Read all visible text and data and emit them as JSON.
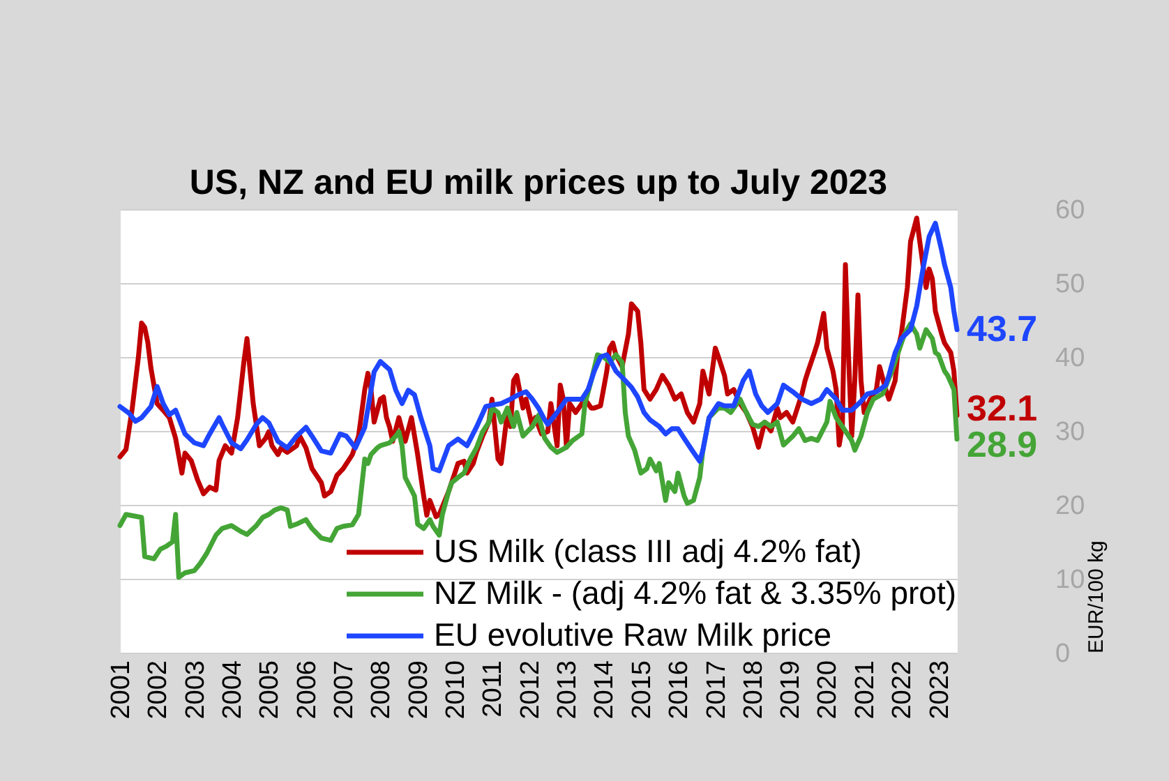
{
  "chart_data": {
    "type": "line",
    "title": "US, NZ and EU milk prices up to July 2023",
    "ylabel": "EUR/100 kg",
    "xlim": [
      "2001-01",
      "2023-07"
    ],
    "xticks": [
      "2001",
      "2002",
      "2003",
      "2004",
      "2005",
      "2006",
      "2007",
      "2008",
      "2009",
      "2010",
      "2011",
      "2012",
      "2013",
      "2014",
      "2015",
      "2016",
      "2017",
      "2018",
      "2019",
      "2020",
      "2021",
      "2022",
      "2023"
    ],
    "ylim": [
      0,
      60
    ],
    "yticks": [
      0,
      10,
      20,
      30,
      40,
      50,
      60
    ],
    "grid": "y",
    "legend": "bottom right",
    "line_style": "solid",
    "series": [
      {
        "name": "US Milk (class III adj 4.2% fat)",
        "color": "#c00000",
        "x": [
          "2001-01",
          "2001-03",
          "2001-05",
          "2001-07",
          "2001-08",
          "2001-09",
          "2001-10",
          "2001-11",
          "2002-01",
          "2002-03",
          "2002-05",
          "2002-07",
          "2002-09",
          "2002-10",
          "2002-12",
          "2003-02",
          "2003-04",
          "2003-06",
          "2003-08",
          "2003-09",
          "2003-11",
          "2004-01",
          "2004-03",
          "2004-05",
          "2004-06",
          "2004-08",
          "2004-10",
          "2004-12",
          "2005-01",
          "2005-02",
          "2005-04",
          "2005-05",
          "2005-07",
          "2005-10",
          "2005-11",
          "2006-01",
          "2006-03",
          "2006-06",
          "2006-07",
          "2006-09",
          "2006-11",
          "2007-01",
          "2007-04",
          "2007-06",
          "2007-08",
          "2007-09",
          "2007-10",
          "2007-11",
          "2008-01",
          "2008-02",
          "2008-03",
          "2008-04",
          "2008-05",
          "2008-07",
          "2008-09",
          "2008-11",
          "2009-01",
          "2009-03",
          "2009-04",
          "2009-05",
          "2009-07",
          "2009-08",
          "2009-11",
          "2010-01",
          "2010-02",
          "2010-04",
          "2010-05",
          "2010-07",
          "2010-08",
          "2010-10",
          "2010-12",
          "2011-01",
          "2011-03",
          "2011-04",
          "2011-06",
          "2011-07",
          "2011-08",
          "2011-09",
          "2011-11",
          "2011-12",
          "2012-02",
          "2012-03",
          "2012-05",
          "2012-07",
          "2012-08",
          "2012-10",
          "2012-11",
          "2012-12",
          "2013-01",
          "2013-02",
          "2013-04",
          "2013-06",
          "2013-07",
          "2013-09",
          "2013-10",
          "2013-12",
          "2014-02",
          "2014-03",
          "2014-04",
          "2014-05",
          "2014-07",
          "2014-09",
          "2014-10",
          "2014-12",
          "2015-01",
          "2015-02",
          "2015-04",
          "2015-06",
          "2015-08",
          "2015-10",
          "2015-12",
          "2016-02",
          "2016-04",
          "2016-06",
          "2016-08",
          "2016-09",
          "2016-11",
          "2017-01",
          "2017-02",
          "2017-04",
          "2017-05",
          "2017-07",
          "2017-09",
          "2017-11",
          "2018-01",
          "2018-03",
          "2018-05",
          "2018-07",
          "2018-09",
          "2018-10",
          "2018-12",
          "2019-02",
          "2019-05",
          "2019-06",
          "2019-07",
          "2019-09",
          "2019-10",
          "2019-12",
          "2020-01",
          "2020-03",
          "2020-04",
          "2020-05",
          "2020-06",
          "2020-07",
          "2020-08",
          "2020-09",
          "2020-10",
          "2020-11",
          "2020-12",
          "2021-01",
          "2021-03",
          "2021-05",
          "2021-06",
          "2021-08",
          "2021-09",
          "2021-11",
          "2021-12",
          "2022-01",
          "2022-03",
          "2022-04",
          "2022-06",
          "2022-07",
          "2022-09",
          "2022-10",
          "2022-11",
          "2022-12",
          "2023-02",
          "2023-03",
          "2023-05",
          "2023-06",
          "2023-07"
        ],
        "values": [
          26.5,
          27.5,
          33.0,
          40.0,
          44.6,
          44.0,
          42.0,
          38.5,
          33.7,
          32.8,
          31.8,
          29.0,
          24.3,
          27.0,
          26.0,
          23.4,
          21.5,
          22.4,
          22.0,
          26.0,
          28.0,
          27.0,
          31.8,
          39.3,
          42.5,
          33.7,
          28.0,
          29.0,
          29.9,
          28.0,
          26.8,
          27.7,
          27.1,
          28.0,
          29.3,
          27.7,
          24.9,
          23.0,
          21.2,
          21.8,
          24.0,
          24.9,
          26.8,
          29.3,
          35.6,
          37.8,
          35.6,
          31.2,
          34.3,
          34.6,
          31.8,
          30.5,
          28.6,
          31.8,
          28.6,
          31.8,
          26.8,
          21.2,
          18.6,
          20.6,
          18.4,
          18.7,
          21.8,
          24.3,
          25.6,
          25.9,
          24.3,
          25.6,
          27.1,
          29.3,
          31.2,
          34.3,
          26.2,
          25.6,
          32.5,
          30.6,
          36.8,
          37.5,
          33.1,
          34.3,
          30.6,
          31.8,
          29.6,
          29.9,
          33.7,
          28.0,
          36.2,
          34.3,
          27.8,
          33.7,
          32.5,
          33.7,
          34.3,
          33.1,
          33.1,
          33.4,
          38.1,
          41.2,
          41.9,
          40.3,
          38.7,
          43.1,
          47.2,
          46.2,
          41.9,
          35.6,
          34.3,
          35.6,
          37.5,
          36.2,
          34.3,
          35.0,
          32.5,
          31.2,
          33.7,
          38.1,
          35.0,
          41.2,
          40.0,
          37.5,
          35.0,
          35.6,
          33.7,
          32.5,
          30.6,
          27.8,
          31.2,
          30.0,
          33.1,
          31.8,
          32.5,
          31.2,
          35.0,
          36.8,
          38.1,
          40.6,
          41.9,
          45.9,
          41.2,
          38.1,
          35.6,
          28.1,
          30.6,
          52.5,
          40.0,
          29.3,
          36.8,
          48.4,
          36.8,
          32.5,
          34.3,
          35.6,
          38.7,
          35.6,
          34.3,
          36.8,
          41.2,
          43.1,
          49.4,
          55.6,
          58.8,
          55.6,
          49.4,
          51.9,
          50.6,
          46.2,
          43.1,
          41.9,
          40.6,
          38.1,
          32.1
        ],
        "value_labels": [
          null,
          null,
          null,
          null,
          null,
          null,
          null,
          null,
          null,
          null,
          null,
          null,
          null,
          null,
          null,
          null,
          null,
          null,
          null,
          null,
          null,
          null,
          null,
          null,
          null,
          null,
          null,
          null,
          null,
          null,
          null,
          null,
          null,
          null,
          null,
          null,
          null,
          null,
          null,
          null,
          null,
          null,
          null,
          null,
          null,
          null,
          null,
          null,
          null,
          null,
          null,
          null,
          null,
          null,
          null,
          null,
          null,
          null,
          null,
          null,
          null,
          null,
          null,
          null,
          null,
          null,
          null,
          null,
          null,
          null,
          null,
          null,
          null,
          null,
          null,
          null,
          null,
          null,
          null,
          null,
          null,
          null,
          null,
          null,
          null,
          null,
          null,
          null,
          null,
          null,
          null,
          null,
          null,
          null,
          null,
          null,
          null,
          null,
          null,
          null,
          null,
          null,
          null,
          null,
          null,
          null,
          null,
          null,
          null,
          null,
          null,
          null,
          null,
          null,
          null,
          null,
          null,
          null,
          null,
          null,
          null,
          null,
          null,
          null,
          null,
          null,
          null,
          null,
          null,
          null,
          null,
          null,
          null,
          null,
          null,
          null,
          null,
          null,
          null,
          null,
          null,
          null,
          null,
          null,
          null,
          null,
          null,
          null,
          null,
          null,
          null,
          null,
          null,
          null,
          null,
          null,
          null,
          null,
          null,
          null,
          null,
          null,
          null,
          null,
          null,
          null,
          null,
          null,
          null,
          null,
          "32.1"
        ]
      },
      {
        "name": "NZ Milk - (adj 4.2% fat & 3.35% prot)",
        "color": "#44a536",
        "x": [
          "2001-01",
          "2001-03",
          "2001-08",
          "2001-09",
          "2001-12",
          "2002-02",
          "2002-04",
          "2002-06",
          "2002-07",
          "2002-08",
          "2002-10",
          "2003-01",
          "2003-03",
          "2003-05",
          "2003-08",
          "2003-10",
          "2004-01",
          "2004-04",
          "2004-06",
          "2004-09",
          "2004-11",
          "2005-01",
          "2005-03",
          "2005-05",
          "2005-07",
          "2005-08",
          "2005-10",
          "2006-01",
          "2006-03",
          "2006-06",
          "2006-09",
          "2006-11",
          "2007-01",
          "2007-04",
          "2007-06",
          "2007-08",
          "2007-09",
          "2007-10",
          "2007-12",
          "2008-01",
          "2008-04",
          "2008-06",
          "2008-07",
          "2008-08",
          "2008-09",
          "2008-12",
          "2009-01",
          "2009-03",
          "2009-05",
          "2009-06",
          "2009-08",
          "2009-09",
          "2009-11",
          "2009-12",
          "2010-02",
          "2010-04",
          "2010-06",
          "2010-08",
          "2010-10",
          "2010-12",
          "2011-01",
          "2011-03",
          "2011-04",
          "2011-06",
          "2011-08",
          "2011-09",
          "2011-11",
          "2012-02",
          "2012-04",
          "2012-06",
          "2012-08",
          "2012-10",
          "2013-01",
          "2013-03",
          "2013-06",
          "2013-07",
          "2013-09",
          "2013-11",
          "2014-01",
          "2014-03",
          "2014-05",
          "2014-07",
          "2014-08",
          "2014-09",
          "2014-11",
          "2015-01",
          "2015-03",
          "2015-04",
          "2015-06",
          "2015-07",
          "2015-09",
          "2015-10",
          "2015-12",
          "2016-01",
          "2016-03",
          "2016-04",
          "2016-06",
          "2016-08",
          "2016-09",
          "2016-11",
          "2017-02",
          "2017-04",
          "2017-06",
          "2017-09",
          "2017-11",
          "2018-01",
          "2018-03",
          "2018-05",
          "2018-07",
          "2018-09",
          "2018-11",
          "2019-02",
          "2019-04",
          "2019-06",
          "2019-08",
          "2019-10",
          "2020-01",
          "2020-02",
          "2020-04",
          "2020-06",
          "2020-09",
          "2020-10",
          "2020-12",
          "2021-02",
          "2021-04",
          "2021-07",
          "2021-10",
          "2021-12",
          "2022-02",
          "2022-04",
          "2022-06",
          "2022-07",
          "2022-09",
          "2022-11",
          "2022-12",
          "2023-01",
          "2023-03",
          "2023-04",
          "2023-06",
          "2023-07"
        ],
        "values": [
          17.2,
          18.7,
          18.3,
          13.0,
          12.7,
          14.0,
          14.4,
          15.0,
          18.7,
          10.2,
          10.8,
          11.1,
          12.1,
          13.4,
          15.9,
          16.8,
          17.2,
          16.4,
          16.0,
          17.2,
          18.3,
          18.7,
          19.3,
          19.6,
          19.3,
          17.1,
          17.4,
          18.0,
          16.8,
          15.5,
          15.2,
          16.8,
          17.1,
          17.3,
          18.7,
          26.2,
          25.6,
          26.8,
          27.7,
          28.0,
          28.4,
          29.3,
          29.9,
          28.0,
          23.7,
          21.2,
          17.4,
          16.8,
          18.0,
          17.1,
          15.9,
          18.7,
          21.8,
          23.0,
          23.7,
          24.3,
          26.2,
          27.7,
          29.9,
          31.2,
          33.1,
          32.5,
          31.2,
          33.1,
          30.6,
          32.5,
          29.3,
          30.6,
          32.1,
          29.0,
          27.8,
          27.1,
          27.8,
          28.7,
          29.6,
          33.7,
          36.8,
          40.3,
          40.0,
          39.3,
          40.3,
          39.3,
          32.5,
          29.3,
          27.4,
          24.3,
          24.9,
          26.2,
          24.6,
          25.6,
          20.6,
          23.0,
          21.8,
          24.3,
          21.2,
          20.2,
          20.6,
          23.7,
          27.4,
          31.8,
          33.1,
          33.1,
          32.5,
          34.3,
          32.5,
          30.9,
          30.6,
          31.2,
          30.6,
          31.2,
          28.1,
          29.3,
          30.3,
          28.7,
          29.0,
          28.7,
          31.2,
          34.0,
          31.8,
          30.6,
          28.7,
          27.4,
          29.3,
          32.5,
          34.3,
          35.0,
          38.1,
          40.6,
          43.1,
          44.5,
          43.1,
          41.2,
          43.7,
          42.5,
          40.6,
          40.3,
          38.1,
          37.5,
          35.6,
          28.9
        ],
        "value_labels": [
          null,
          null,
          null,
          null,
          null,
          null,
          null,
          null,
          null,
          null,
          null,
          null,
          null,
          null,
          null,
          null,
          null,
          null,
          null,
          null,
          null,
          null,
          null,
          null,
          null,
          null,
          null,
          null,
          null,
          null,
          null,
          null,
          null,
          null,
          null,
          null,
          null,
          null,
          null,
          null,
          null,
          null,
          null,
          null,
          null,
          null,
          null,
          null,
          null,
          null,
          null,
          null,
          null,
          null,
          null,
          null,
          null,
          null,
          null,
          null,
          null,
          null,
          null,
          null,
          null,
          null,
          null,
          null,
          null,
          null,
          null,
          null,
          null,
          null,
          null,
          null,
          null,
          null,
          null,
          null,
          null,
          null,
          null,
          null,
          null,
          null,
          null,
          null,
          null,
          null,
          null,
          null,
          null,
          null,
          null,
          null,
          null,
          null,
          null,
          null,
          null,
          null,
          null,
          null,
          null,
          null,
          null,
          null,
          null,
          null,
          null,
          null,
          null,
          null,
          null,
          null,
          null,
          null,
          null,
          null,
          null,
          null,
          null,
          null,
          null,
          null,
          null,
          null,
          null,
          null,
          null,
          null,
          null,
          null,
          null,
          null,
          null,
          null,
          null,
          "28.9"
        ]
      },
      {
        "name": "EU evolutive Raw Milk price",
        "color": "#1e46ff",
        "x": [
          "2001-01",
          "2001-04",
          "2001-06",
          "2001-08",
          "2001-11",
          "2002-01",
          "2002-03",
          "2002-05",
          "2002-07",
          "2002-10",
          "2003-01",
          "2003-04",
          "2003-06",
          "2003-09",
          "2003-10",
          "2004-01",
          "2004-04",
          "2004-06",
          "2004-09",
          "2004-11",
          "2005-01",
          "2005-04",
          "2005-07",
          "2005-10",
          "2006-01",
          "2006-03",
          "2006-06",
          "2006-09",
          "2006-12",
          "2007-02",
          "2007-05",
          "2007-08",
          "2007-11",
          "2008-01",
          "2008-04",
          "2008-06",
          "2008-08",
          "2008-10",
          "2008-12",
          "2009-02",
          "2009-05",
          "2009-06",
          "2009-08",
          "2009-11",
          "2010-02",
          "2010-05",
          "2010-08",
          "2010-11",
          "2011-01",
          "2011-04",
          "2011-07",
          "2011-10",
          "2011-12",
          "2012-02",
          "2012-04",
          "2012-06",
          "2012-07",
          "2012-10",
          "2013-01",
          "2013-03",
          "2013-06",
          "2013-08",
          "2013-10",
          "2013-12",
          "2014-02",
          "2014-03",
          "2014-05",
          "2014-08",
          "2014-10",
          "2014-12",
          "2015-02",
          "2015-04",
          "2015-07",
          "2015-09",
          "2015-11",
          "2016-01",
          "2016-03",
          "2016-06",
          "2016-08",
          "2016-09",
          "2016-11",
          "2017-02",
          "2017-04",
          "2017-07",
          "2017-10",
          "2017-12",
          "2018-02",
          "2018-04",
          "2018-06",
          "2018-09",
          "2018-11",
          "2019-02",
          "2019-05",
          "2019-08",
          "2019-11",
          "2020-01",
          "2020-04",
          "2020-06",
          "2020-09",
          "2020-12",
          "2021-02",
          "2021-05",
          "2021-08",
          "2021-09",
          "2021-11",
          "2022-01",
          "2022-04",
          "2022-06",
          "2022-08",
          "2022-10",
          "2022-12",
          "2023-02",
          "2023-03",
          "2023-05",
          "2023-06",
          "2023-07"
        ],
        "values": [
          33.3,
          32.4,
          31.3,
          31.8,
          33.3,
          36.0,
          33.7,
          32.2,
          32.8,
          29.6,
          28.4,
          28.0,
          29.6,
          31.8,
          30.9,
          28.4,
          27.6,
          28.8,
          30.9,
          31.8,
          31.1,
          28.6,
          27.7,
          29.3,
          30.5,
          29.3,
          27.3,
          27.0,
          29.6,
          29.3,
          27.7,
          30.5,
          38.0,
          39.4,
          38.3,
          35.5,
          33.7,
          35.5,
          34.9,
          31.8,
          28.0,
          24.9,
          24.6,
          28.0,
          28.9,
          28.0,
          30.5,
          33.3,
          33.5,
          33.7,
          34.3,
          35.0,
          35.3,
          34.3,
          33.1,
          31.5,
          30.9,
          32.5,
          34.3,
          34.3,
          34.3,
          35.6,
          38.1,
          40.0,
          40.3,
          39.7,
          38.1,
          36.8,
          35.9,
          34.6,
          32.5,
          31.5,
          30.6,
          29.6,
          30.3,
          30.3,
          29.0,
          27.1,
          25.9,
          27.4,
          31.8,
          33.7,
          33.4,
          33.4,
          36.8,
          38.1,
          35.0,
          33.4,
          32.5,
          33.7,
          36.2,
          35.3,
          34.3,
          33.7,
          34.3,
          35.6,
          34.3,
          32.8,
          32.8,
          34.0,
          35.0,
          35.3,
          36.2,
          37.5,
          40.6,
          42.5,
          43.7,
          46.9,
          51.9,
          56.3,
          58.1,
          54.4,
          52.5,
          49.4,
          46.2,
          43.7
        ],
        "value_labels": [
          null,
          null,
          null,
          null,
          null,
          null,
          null,
          null,
          null,
          null,
          null,
          null,
          null,
          null,
          null,
          null,
          null,
          null,
          null,
          null,
          null,
          null,
          null,
          null,
          null,
          null,
          null,
          null,
          null,
          null,
          null,
          null,
          null,
          null,
          null,
          null,
          null,
          null,
          null,
          null,
          null,
          null,
          null,
          null,
          null,
          null,
          null,
          null,
          null,
          null,
          null,
          null,
          null,
          null,
          null,
          null,
          null,
          null,
          null,
          null,
          null,
          null,
          null,
          null,
          null,
          null,
          null,
          null,
          null,
          null,
          null,
          null,
          null,
          null,
          null,
          null,
          null,
          null,
          null,
          null,
          null,
          null,
          null,
          null,
          null,
          null,
          null,
          null,
          null,
          null,
          null,
          null,
          null,
          null,
          null,
          null,
          null,
          null,
          null,
          null,
          null,
          null,
          null,
          null,
          null,
          null,
          null,
          null,
          null,
          null,
          null,
          null,
          null,
          null,
          null,
          "43.7"
        ]
      }
    ]
  }
}
